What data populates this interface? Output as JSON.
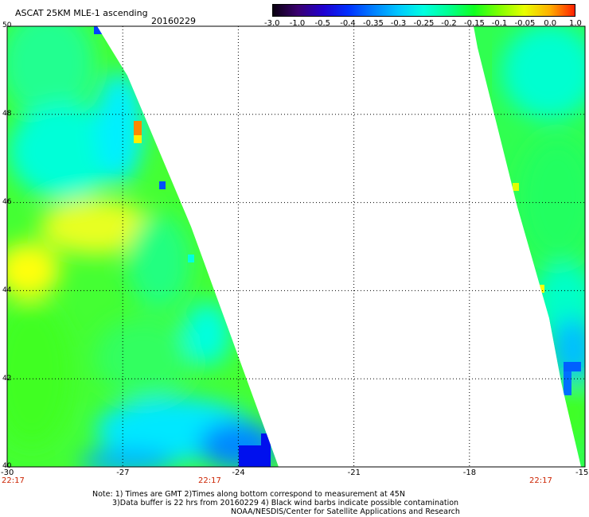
{
  "header": {
    "title": "ASCAT 25KM MLE-1 ascending",
    "date": "20160229"
  },
  "colorbar": {
    "labels": [
      "-3.0",
      "-1.0",
      "-0.5",
      "-0.4",
      "-0.35",
      "-0.3",
      "-0.25",
      "-0.2",
      "-0.15",
      "-0.1",
      "-0.05",
      "0.0",
      "1.0"
    ],
    "colors": [
      "#0a0010",
      "#3a0070",
      "#2000d0",
      "#0030ff",
      "#0080ff",
      "#00c8ff",
      "#00ffe0",
      "#00ff90",
      "#10ff20",
      "#80ff00",
      "#e8ff00",
      "#ffb000",
      "#ff2000"
    ]
  },
  "map": {
    "lon_labels": [
      "-30",
      "-27",
      "-24",
      "-21",
      "-18",
      "-15"
    ],
    "lat_labels": [
      "50",
      "48",
      "46",
      "44",
      "42",
      "40"
    ],
    "colors": {
      "grid": "#000000",
      "green": "#33ff33",
      "cyan": "#00ffee",
      "yellow": "#ffff00",
      "blue": "#0044ff"
    }
  },
  "times": {
    "left": "22:17",
    "mid": "22:17",
    "right": "22:17"
  },
  "notes": {
    "line1": "Note: 1) Times are GMT 2)Times along bottom correspond to measurement at 45N",
    "line2": "3)Data buffer is 22 hrs from 20160229 4) Black wind barbs indicate possible contamination",
    "line3": "NOAA/NESDIS/Center for Satellite Applications and Research"
  }
}
